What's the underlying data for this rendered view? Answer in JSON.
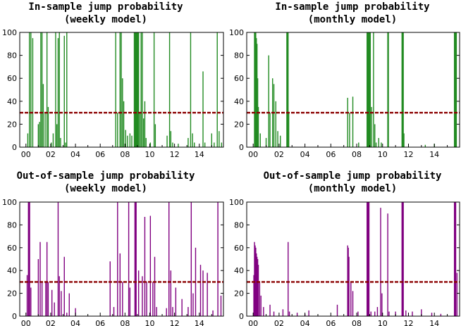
{
  "chart_data": [
    {
      "type": "bar",
      "title": "In-sample jump probability\n(weekly model)",
      "series_color": "#228B22",
      "threshold": 30,
      "threshold_color": "#8B0000",
      "xlim": [
        1999.5,
        2015.95
      ],
      "ylim": [
        0,
        100
      ],
      "xticks": [
        "00",
        "02",
        "04",
        "06",
        "08",
        "10",
        "12",
        "14"
      ],
      "yticks": [
        0,
        20,
        40,
        60,
        80,
        100
      ],
      "spikes": [
        [
          2000.15,
          12
        ],
        [
          2000.28,
          100
        ],
        [
          2000.4,
          100
        ],
        [
          2000.55,
          95
        ],
        [
          2000.65,
          0
        ],
        [
          2001.0,
          20
        ],
        [
          2001.1,
          22
        ],
        [
          2001.2,
          100
        ],
        [
          2001.3,
          100
        ],
        [
          2001.4,
          55
        ],
        [
          2001.55,
          30
        ],
        [
          2001.7,
          100
        ],
        [
          2001.8,
          35
        ],
        [
          2002.05,
          4
        ],
        [
          2002.2,
          12
        ],
        [
          2002.4,
          100
        ],
        [
          2002.5,
          20
        ],
        [
          2002.6,
          95
        ],
        [
          2002.7,
          100
        ],
        [
          2002.8,
          8
        ],
        [
          2003.1,
          97
        ],
        [
          2003.2,
          4
        ],
        [
          2003.3,
          100
        ],
        [
          2007.25,
          100
        ],
        [
          2007.4,
          30
        ],
        [
          2007.6,
          100
        ],
        [
          2007.7,
          100
        ],
        [
          2007.8,
          60
        ],
        [
          2007.9,
          40
        ],
        [
          2008.05,
          15
        ],
        [
          2008.2,
          10
        ],
        [
          2008.4,
          12
        ],
        [
          2008.55,
          10
        ],
        [
          2008.75,
          100
        ],
        [
          2008.8,
          100
        ],
        [
          2008.85,
          100
        ],
        [
          2008.9,
          100
        ],
        [
          2008.95,
          100
        ],
        [
          2009.0,
          100
        ],
        [
          2009.05,
          100
        ],
        [
          2009.1,
          100
        ],
        [
          2009.2,
          30
        ],
        [
          2009.3,
          100
        ],
        [
          2009.4,
          100
        ],
        [
          2009.5,
          25
        ],
        [
          2009.6,
          40
        ],
        [
          2009.7,
          8
        ],
        [
          2010.05,
          4
        ],
        [
          2010.35,
          100
        ],
        [
          2010.45,
          20
        ],
        [
          2011.4,
          10
        ],
        [
          2011.6,
          100
        ],
        [
          2011.7,
          14
        ],
        [
          2011.85,
          4
        ],
        [
          2012.3,
          3
        ],
        [
          2013.1,
          8
        ],
        [
          2013.3,
          100
        ],
        [
          2013.45,
          12
        ],
        [
          2013.6,
          4
        ],
        [
          2014.3,
          66
        ],
        [
          2014.45,
          4
        ],
        [
          2015.0,
          12
        ],
        [
          2015.2,
          4
        ],
        [
          2015.45,
          100
        ],
        [
          2015.6,
          14
        ],
        [
          2015.8,
          4
        ]
      ]
    },
    {
      "type": "bar",
      "title": "In-sample jump probability\n(monthly model)",
      "series_color": "#228B22",
      "threshold": 30,
      "threshold_color": "#8B0000",
      "xlim": [
        1999.5,
        2015.95
      ],
      "ylim": [
        0,
        100
      ],
      "xticks": [
        "00",
        "02",
        "04",
        "06",
        "08",
        "10",
        "12",
        "14"
      ],
      "yticks": [
        0,
        20,
        40,
        60,
        80,
        100
      ],
      "spikes": [
        [
          2000.1,
          100
        ],
        [
          2000.15,
          100
        ],
        [
          2000.2,
          100
        ],
        [
          2000.25,
          95
        ],
        [
          2000.3,
          90
        ],
        [
          2000.35,
          60
        ],
        [
          2000.4,
          35
        ],
        [
          2000.55,
          12
        ],
        [
          2001.0,
          8
        ],
        [
          2001.2,
          80
        ],
        [
          2001.3,
          30
        ],
        [
          2001.5,
          60
        ],
        [
          2001.6,
          55
        ],
        [
          2001.75,
          40
        ],
        [
          2001.9,
          14
        ],
        [
          2002.1,
          10
        ],
        [
          2002.6,
          100
        ],
        [
          2002.65,
          100
        ],
        [
          2002.7,
          100
        ],
        [
          2002.75,
          30
        ],
        [
          2007.3,
          43
        ],
        [
          2007.45,
          30
        ],
        [
          2007.7,
          44
        ],
        [
          2008.15,
          4
        ],
        [
          2008.8,
          100
        ],
        [
          2008.85,
          100
        ],
        [
          2008.9,
          100
        ],
        [
          2008.95,
          100
        ],
        [
          2009.0,
          100
        ],
        [
          2009.05,
          100
        ],
        [
          2009.15,
          35
        ],
        [
          2009.3,
          100
        ],
        [
          2009.4,
          20
        ],
        [
          2009.5,
          4
        ],
        [
          2009.7,
          8
        ],
        [
          2009.9,
          4
        ],
        [
          2010.4,
          100
        ],
        [
          2010.45,
          100
        ],
        [
          2011.5,
          100
        ],
        [
          2011.55,
          100
        ],
        [
          2011.6,
          100
        ],
        [
          2011.65,
          12
        ],
        [
          2013.3,
          2
        ],
        [
          2014.0,
          3
        ],
        [
          2015.55,
          100
        ],
        [
          2015.6,
          100
        ],
        [
          2015.65,
          100
        ],
        [
          2015.7,
          100
        ]
      ]
    },
    {
      "type": "bar",
      "title": "Out-of-sample jump probability\n(weekly model)",
      "series_color": "#800080",
      "threshold": 30,
      "threshold_color": "#8B0000",
      "xlim": [
        1999.5,
        2015.95
      ],
      "ylim": [
        0,
        100
      ],
      "xticks": [
        "00",
        "02",
        "04",
        "06",
        "08",
        "10",
        "12",
        "14"
      ],
      "yticks": [
        0,
        20,
        40,
        60,
        80,
        100
      ],
      "spikes": [
        [
          2000.1,
          36
        ],
        [
          2000.2,
          100
        ],
        [
          2000.25,
          100
        ],
        [
          2000.3,
          100
        ],
        [
          2000.4,
          25
        ],
        [
          2001.0,
          50
        ],
        [
          2001.15,
          65
        ],
        [
          2001.3,
          30
        ],
        [
          2001.6,
          30
        ],
        [
          2001.7,
          65
        ],
        [
          2001.8,
          30
        ],
        [
          2002.1,
          23
        ],
        [
          2002.3,
          12
        ],
        [
          2002.6,
          100
        ],
        [
          2002.7,
          35
        ],
        [
          2002.85,
          22
        ],
        [
          2003.1,
          52
        ],
        [
          2003.3,
          3
        ],
        [
          2003.5,
          20
        ],
        [
          2004.0,
          7
        ],
        [
          2006.8,
          48
        ],
        [
          2007.1,
          8
        ],
        [
          2007.4,
          100
        ],
        [
          2007.6,
          55
        ],
        [
          2007.8,
          30
        ],
        [
          2008.3,
          100
        ],
        [
          2008.4,
          25
        ],
        [
          2008.8,
          100
        ],
        [
          2008.85,
          100
        ],
        [
          2008.9,
          100
        ],
        [
          2009.1,
          40
        ],
        [
          2009.4,
          35
        ],
        [
          2009.6,
          87
        ],
        [
          2009.75,
          30
        ],
        [
          2010.05,
          88
        ],
        [
          2010.25,
          30
        ],
        [
          2010.4,
          52
        ],
        [
          2010.55,
          8
        ],
        [
          2011.35,
          7
        ],
        [
          2011.55,
          100
        ],
        [
          2011.7,
          40
        ],
        [
          2011.85,
          8
        ],
        [
          2012.1,
          25
        ],
        [
          2012.6,
          15
        ],
        [
          2013.1,
          8
        ],
        [
          2013.35,
          100
        ],
        [
          2013.5,
          20
        ],
        [
          2013.7,
          60
        ],
        [
          2014.1,
          45
        ],
        [
          2014.3,
          40
        ],
        [
          2014.65,
          38
        ],
        [
          2015.1,
          5
        ],
        [
          2015.5,
          100
        ],
        [
          2015.75,
          18
        ]
      ]
    },
    {
      "type": "bar",
      "title": "Out-of-sample jump probability\n(monthly model)",
      "series_color": "#800080",
      "threshold": 30,
      "threshold_color": "#8B0000",
      "xlim": [
        1999.5,
        2015.95
      ],
      "ylim": [
        0,
        100
      ],
      "xticks": [
        "00",
        "02",
        "04",
        "06",
        "08",
        "10",
        "12",
        "14"
      ],
      "yticks": [
        0,
        20,
        40,
        60,
        80,
        100
      ],
      "spikes": [
        [
          2000.05,
          36
        ],
        [
          2000.1,
          65
        ],
        [
          2000.15,
          62
        ],
        [
          2000.2,
          60
        ],
        [
          2000.25,
          55
        ],
        [
          2000.3,
          52
        ],
        [
          2000.35,
          50
        ],
        [
          2000.4,
          45
        ],
        [
          2000.5,
          30
        ],
        [
          2000.6,
          18
        ],
        [
          2000.8,
          8
        ],
        [
          2001.3,
          10
        ],
        [
          2001.6,
          4
        ],
        [
          2002.3,
          6
        ],
        [
          2002.7,
          65
        ],
        [
          2002.8,
          4
        ],
        [
          2003.4,
          3
        ],
        [
          2004.0,
          2
        ],
        [
          2004.3,
          5
        ],
        [
          2006.5,
          10
        ],
        [
          2007.3,
          62
        ],
        [
          2007.35,
          60
        ],
        [
          2007.4,
          52
        ],
        [
          2007.55,
          30
        ],
        [
          2007.7,
          22
        ],
        [
          2008.1,
          4
        ],
        [
          2008.8,
          100
        ],
        [
          2008.85,
          100
        ],
        [
          2008.9,
          100
        ],
        [
          2008.95,
          100
        ],
        [
          2009.1,
          4
        ],
        [
          2009.4,
          4
        ],
        [
          2009.6,
          8
        ],
        [
          2009.85,
          95
        ],
        [
          2009.95,
          20
        ],
        [
          2010.4,
          90
        ],
        [
          2010.5,
          4
        ],
        [
          2011.0,
          4
        ],
        [
          2011.5,
          100
        ],
        [
          2011.55,
          100
        ],
        [
          2011.6,
          100
        ],
        [
          2011.8,
          5
        ],
        [
          2012.3,
          4
        ],
        [
          2013.0,
          6
        ],
        [
          2013.8,
          3
        ],
        [
          2014.5,
          2
        ],
        [
          2015.55,
          100
        ],
        [
          2015.6,
          100
        ],
        [
          2015.65,
          100
        ],
        [
          2015.75,
          38
        ]
      ]
    }
  ]
}
